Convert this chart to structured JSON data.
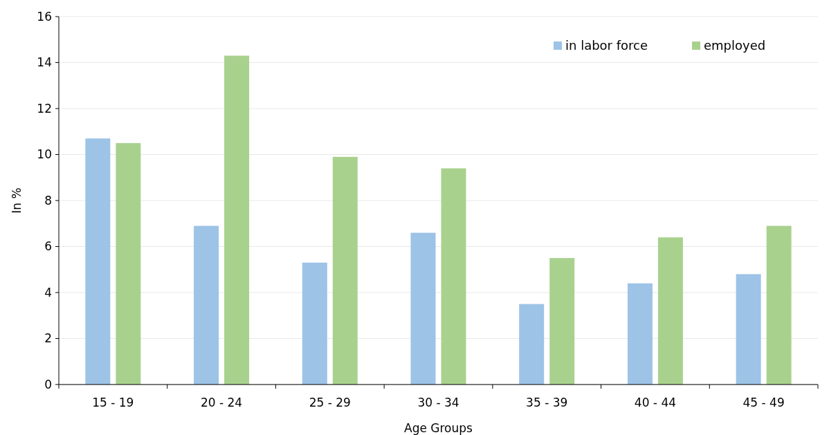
{
  "chart_data": {
    "type": "bar",
    "xlabel": "Age Groups",
    "ylabel": "In %",
    "categories": [
      "15 - 19",
      "20 - 24",
      "25 - 29",
      "30 - 34",
      "35 - 39",
      "40 - 44",
      "45 - 49"
    ],
    "series": [
      {
        "name": "in labor force",
        "color": "#9dc3e6",
        "values": [
          10.7,
          6.9,
          5.3,
          6.6,
          3.5,
          4.4,
          4.8
        ]
      },
      {
        "name": "employed",
        "color": "#a9d18e",
        "values": [
          10.5,
          14.3,
          9.9,
          9.4,
          5.5,
          6.4,
          6.9
        ]
      }
    ],
    "ylim": [
      0,
      16
    ],
    "yticks": [
      0,
      2,
      4,
      6,
      8,
      10,
      12,
      14,
      16
    ],
    "grid": "y",
    "legend": "top right"
  }
}
